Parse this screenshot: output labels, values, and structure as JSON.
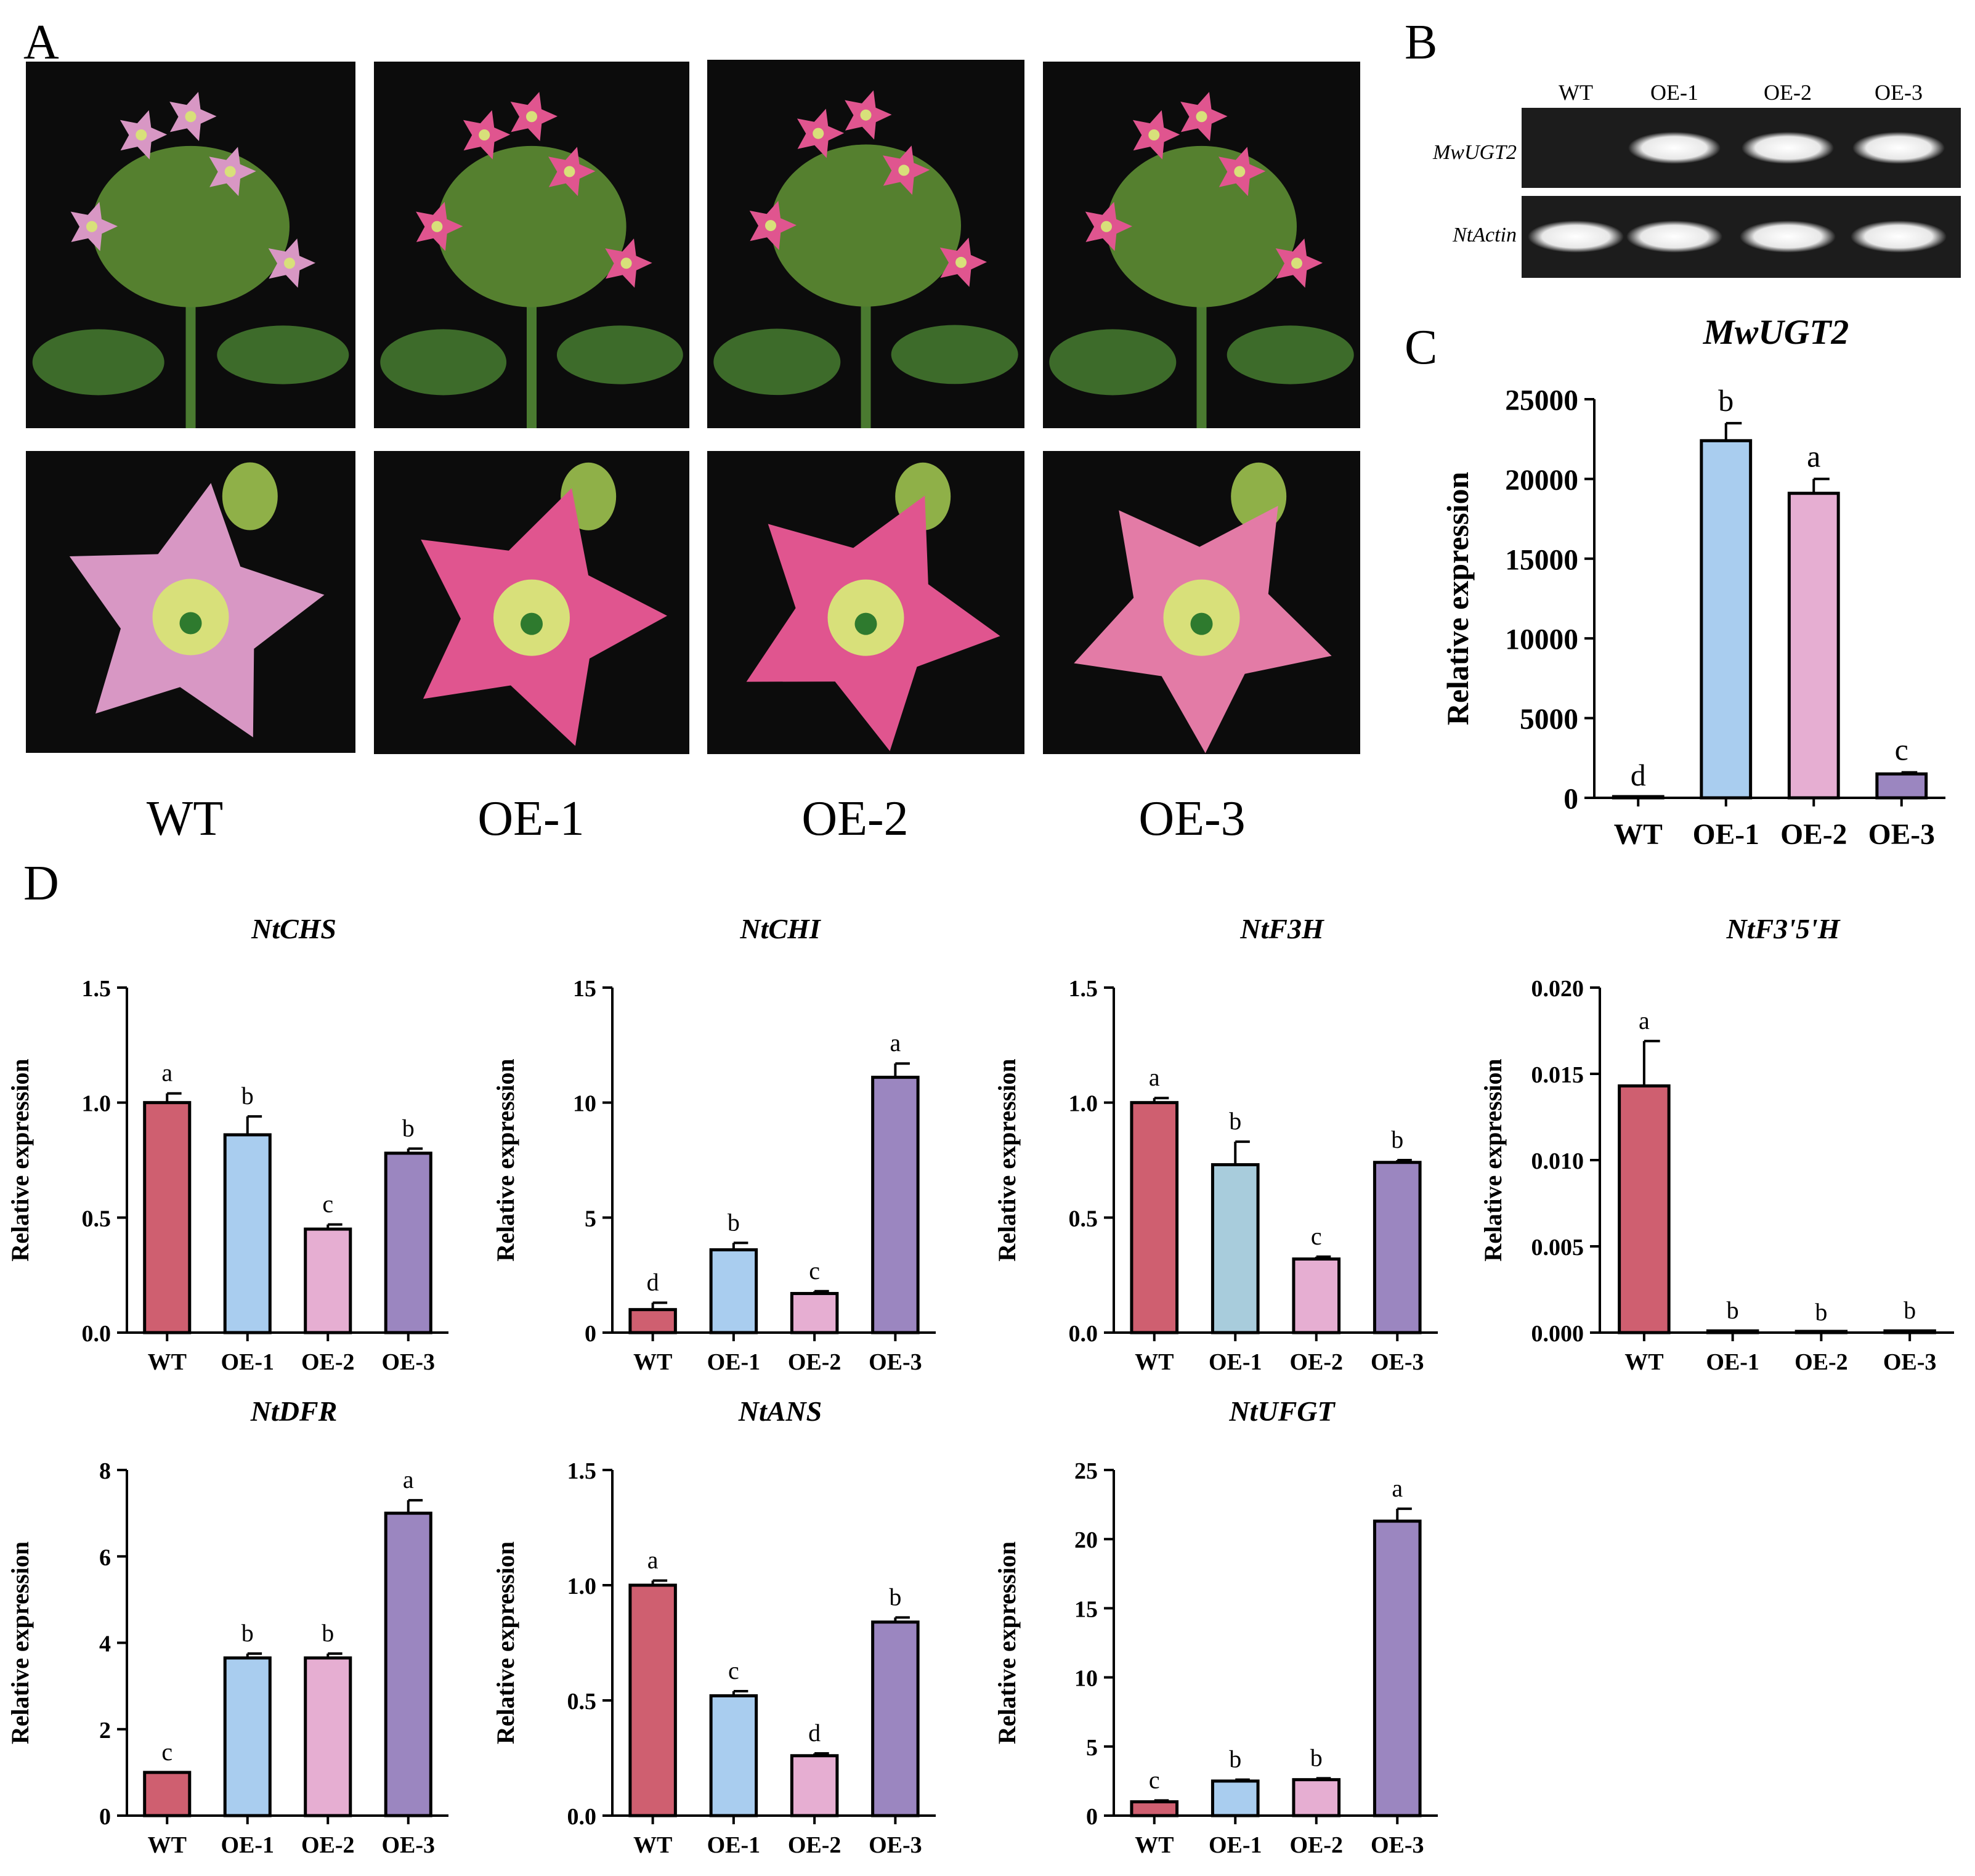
{
  "panel_labels": {
    "a": "A",
    "b": "B",
    "c": "C",
    "d": "D"
  },
  "photos": {
    "labels": [
      "WT",
      "OE-1",
      "OE-2",
      "OE-3"
    ],
    "colors": {
      "background": "#0c0c0c",
      "leaf": "#3d6b2a",
      "bud": "#8fb048",
      "flower_wt": "#d897c4",
      "flower_oe": "#e0558f",
      "center": "#d8e07a"
    }
  },
  "gel": {
    "lanes": [
      "WT",
      "OE-1",
      "OE-2",
      "OE-3"
    ],
    "genes": [
      "MwUGT2",
      "NtActin"
    ]
  },
  "colors": {
    "WT": "#cf5f70",
    "OE-1": "#a9cdef",
    "OE-2": "#e6aed2",
    "OE-3": "#9b86c0",
    "OE-1-alt": "#a8ccdc"
  },
  "chart_data": [
    {
      "id": "C",
      "type": "bar",
      "title": "MwUGT2",
      "ylabel": "Relative expression",
      "categories": [
        "WT",
        "OE-1",
        "OE-2",
        "OE-3"
      ],
      "values": [
        1,
        22400,
        19100,
        1500
      ],
      "errors": [
        0,
        1100,
        900,
        100
      ],
      "letters": [
        "d",
        "b",
        "a",
        "c"
      ],
      "ylim": [
        0,
        25000
      ],
      "yticks": [
        "0",
        "5000",
        "10000",
        "15000",
        "20000",
        "25000"
      ]
    },
    {
      "id": "NtCHS",
      "type": "bar",
      "title": "NtCHS",
      "ylabel": "Relative expression",
      "categories": [
        "WT",
        "OE-1",
        "OE-2",
        "OE-3"
      ],
      "values": [
        1.0,
        0.86,
        0.45,
        0.78
      ],
      "errors": [
        0.04,
        0.08,
        0.02,
        0.02
      ],
      "letters": [
        "a",
        "b",
        "c",
        "b"
      ],
      "ylim": [
        0,
        1.5
      ],
      "yticks": [
        "0.0",
        "0.5",
        "1.0",
        "1.5"
      ]
    },
    {
      "id": "NtCHI",
      "type": "bar",
      "title": "NtCHI",
      "ylabel": "Relative expression",
      "categories": [
        "WT",
        "OE-1",
        "OE-2",
        "OE-3"
      ],
      "values": [
        1.0,
        3.6,
        1.7,
        11.1
      ],
      "errors": [
        0.3,
        0.3,
        0.1,
        0.6
      ],
      "letters": [
        "d",
        "b",
        "c",
        "a"
      ],
      "ylim": [
        0,
        15
      ],
      "yticks": [
        "0",
        "5",
        "10",
        "15"
      ]
    },
    {
      "id": "NtF3H",
      "type": "bar",
      "title": "NtF3H",
      "ylabel": "Relative expression",
      "categories": [
        "WT",
        "OE-1",
        "OE-2",
        "OE-3"
      ],
      "values": [
        1.0,
        0.73,
        0.32,
        0.74
      ],
      "errors": [
        0.02,
        0.1,
        0.01,
        0.01
      ],
      "letters": [
        "a",
        "b",
        "c",
        "b"
      ],
      "ylim": [
        0,
        1.5
      ],
      "yticks": [
        "0.0",
        "0.5",
        "1.0",
        "1.5"
      ],
      "oe1_alt": true
    },
    {
      "id": "NtF3'5'H",
      "type": "bar",
      "title": "NtF3'5'H",
      "ylabel": "Relative expression",
      "categories": [
        "WT",
        "OE-1",
        "OE-2",
        "OE-3"
      ],
      "values": [
        0.0143,
        0.0001,
        0.0,
        0.0001
      ],
      "errors": [
        0.0026,
        0,
        0,
        0
      ],
      "letters": [
        "a",
        "b",
        "b",
        "b"
      ],
      "ylim": [
        0,
        0.02
      ],
      "yticks": [
        "0.000",
        "0.005",
        "0.010",
        "0.015",
        "0.020"
      ]
    },
    {
      "id": "NtDFR",
      "type": "bar",
      "title": "NtDFR",
      "ylabel": "Relative expression",
      "categories": [
        "WT",
        "OE-1",
        "OE-2",
        "OE-3"
      ],
      "values": [
        1.0,
        3.65,
        3.65,
        7.0
      ],
      "errors": [
        0,
        0.1,
        0.1,
        0.3
      ],
      "letters": [
        "c",
        "b",
        "b",
        "a"
      ],
      "ylim": [
        0,
        8
      ],
      "yticks": [
        "0",
        "2",
        "4",
        "6",
        "8"
      ]
    },
    {
      "id": "NtANS",
      "type": "bar",
      "title": "NtANS",
      "ylabel": "Relative expression",
      "categories": [
        "WT",
        "OE-1",
        "OE-2",
        "OE-3"
      ],
      "values": [
        1.0,
        0.52,
        0.26,
        0.84
      ],
      "errors": [
        0.02,
        0.02,
        0.01,
        0.02
      ],
      "letters": [
        "a",
        "c",
        "d",
        "b"
      ],
      "ylim": [
        0,
        1.5
      ],
      "yticks": [
        "0.0",
        "0.5",
        "1.0",
        "1.5"
      ]
    },
    {
      "id": "NtUFGT",
      "type": "bar",
      "title": "NtUFGT",
      "ylabel": "Relative expression",
      "categories": [
        "WT",
        "OE-1",
        "OE-2",
        "OE-3"
      ],
      "values": [
        1.0,
        2.5,
        2.6,
        21.3
      ],
      "errors": [
        0.1,
        0.1,
        0.1,
        0.9
      ],
      "letters": [
        "c",
        "b",
        "b",
        "a"
      ],
      "ylim": [
        0,
        25
      ],
      "yticks": [
        "0",
        "5",
        "10",
        "15",
        "20",
        "25"
      ]
    }
  ]
}
